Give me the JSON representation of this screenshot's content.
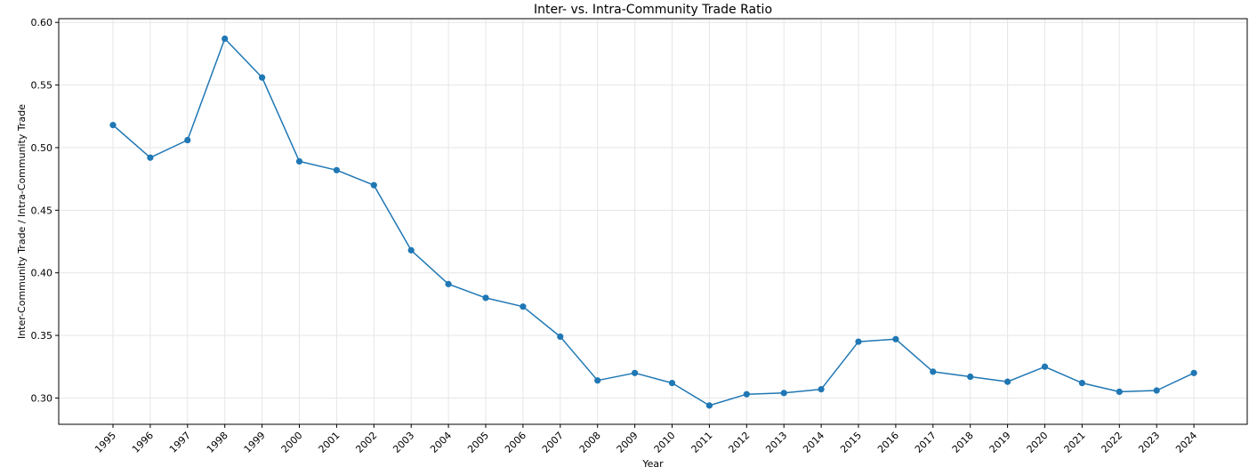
{
  "chart_data": {
    "type": "line",
    "title": "Inter- vs. Intra-Community Trade Ratio",
    "xlabel": "Year",
    "ylabel": "Inter-Community Trade / Intra-Community Trade",
    "x": [
      "1995",
      "1996",
      "1997",
      "1998",
      "1999",
      "2000",
      "2001",
      "2002",
      "2003",
      "2004",
      "2005",
      "2006",
      "2007",
      "2008",
      "2009",
      "2010",
      "2011",
      "2012",
      "2013",
      "2014",
      "2015",
      "2016",
      "2017",
      "2018",
      "2019",
      "2020",
      "2021",
      "2022",
      "2023",
      "2024"
    ],
    "series": [
      {
        "values": [
          0.518,
          0.492,
          0.506,
          0.587,
          0.556,
          0.489,
          0.482,
          0.47,
          0.418,
          0.391,
          0.38,
          0.373,
          0.349,
          0.314,
          0.32,
          0.312,
          0.294,
          0.303,
          0.304,
          0.307,
          0.345,
          0.347,
          0.321,
          0.317,
          0.313,
          0.325,
          0.312,
          0.305,
          0.306,
          0.32
        ],
        "color": "#1f77b4"
      }
    ],
    "yticks": [
      "0.30",
      "0.35",
      "0.40",
      "0.45",
      "0.50",
      "0.55",
      "0.60"
    ],
    "ylim": [
      0.279,
      0.603
    ],
    "grid": true,
    "marker": "circle"
  }
}
